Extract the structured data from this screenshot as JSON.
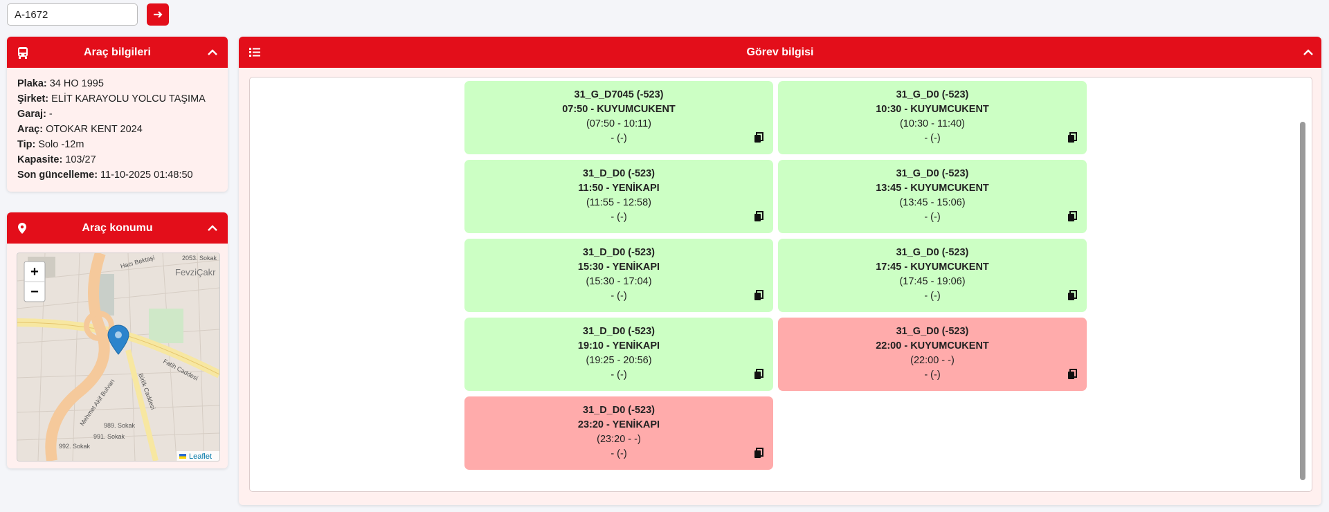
{
  "search": {
    "value": "A-1672"
  },
  "vehicle_panel": {
    "title": "Araç bilgileri",
    "fields": [
      {
        "label": "Plaka:",
        "value": "34 HO 1995"
      },
      {
        "label": "Şirket:",
        "value": "ELİT KARAYOLU YOLCU TAŞIMA"
      },
      {
        "label": "Garaj:",
        "value": "-"
      },
      {
        "label": "Araç:",
        "value": "OTOKAR KENT 2024"
      },
      {
        "label": "Tip:",
        "value": "Solo -12m"
      },
      {
        "label": "Kapasite:",
        "value": "103/27"
      },
      {
        "label": "Son güncelleme:",
        "value": "11-10-2025 01:48:50"
      }
    ]
  },
  "location_panel": {
    "title": "Araç konumu",
    "map": {
      "zoom_in": "+",
      "zoom_out": "−",
      "attribution": "Leaflet",
      "labels": [
        "Fatih Caddesi",
        "Mehmet Akif Bulvarı",
        "Birlik Caddesi",
        "FevziÇakr",
        "989. Sokak",
        "991. Sokak",
        "992. Sokak",
        "2053. Sokak",
        "Hacı Bektaşi"
      ]
    }
  },
  "task_panel": {
    "title": "Görev bilgisi",
    "cards": [
      {
        "name": "31_G_D7045 (-523)",
        "line": "07:50 - KUYUMCUKENT",
        "range": "(07:50 - 10:11)",
        "extra": "- (-)",
        "color": "#ccffc4"
      },
      {
        "name": "31_G_D0 (-523)",
        "line": "10:30 - KUYUMCUKENT",
        "range": "(10:30 - 11:40)",
        "extra": "- (-)",
        "color": "#ccffc4"
      },
      {
        "name": "31_D_D0 (-523)",
        "line": "11:50 - YENİKAPI",
        "range": "(11:55 - 12:58)",
        "extra": "- (-)",
        "color": "#ccffc4"
      },
      {
        "name": "31_G_D0 (-523)",
        "line": "13:45 - KUYUMCUKENT",
        "range": "(13:45 - 15:06)",
        "extra": "- (-)",
        "color": "#ccffc4"
      },
      {
        "name": "31_D_D0 (-523)",
        "line": "15:30 - YENİKAPI",
        "range": "(15:30 - 17:04)",
        "extra": "- (-)",
        "color": "#ccffc4"
      },
      {
        "name": "31_G_D0 (-523)",
        "line": "17:45 - KUYUMCUKENT",
        "range": "(17:45 - 19:06)",
        "extra": "- (-)",
        "color": "#ccffc4"
      },
      {
        "name": "31_D_D0 (-523)",
        "line": "19:10 - YENİKAPI",
        "range": "(19:25 - 20:56)",
        "extra": "- (-)",
        "color": "#ccffc4"
      },
      {
        "name": "31_G_D0 (-523)",
        "line": "22:00 - KUYUMCUKENT",
        "range": "(22:00 - -)",
        "extra": "- (-)",
        "color": "#ffabab"
      },
      {
        "name": "31_D_D0 (-523)",
        "line": "23:20 - YENİKAPI",
        "range": "(23:20 - -)",
        "extra": "- (-)",
        "color": "#ffabab"
      }
    ]
  }
}
